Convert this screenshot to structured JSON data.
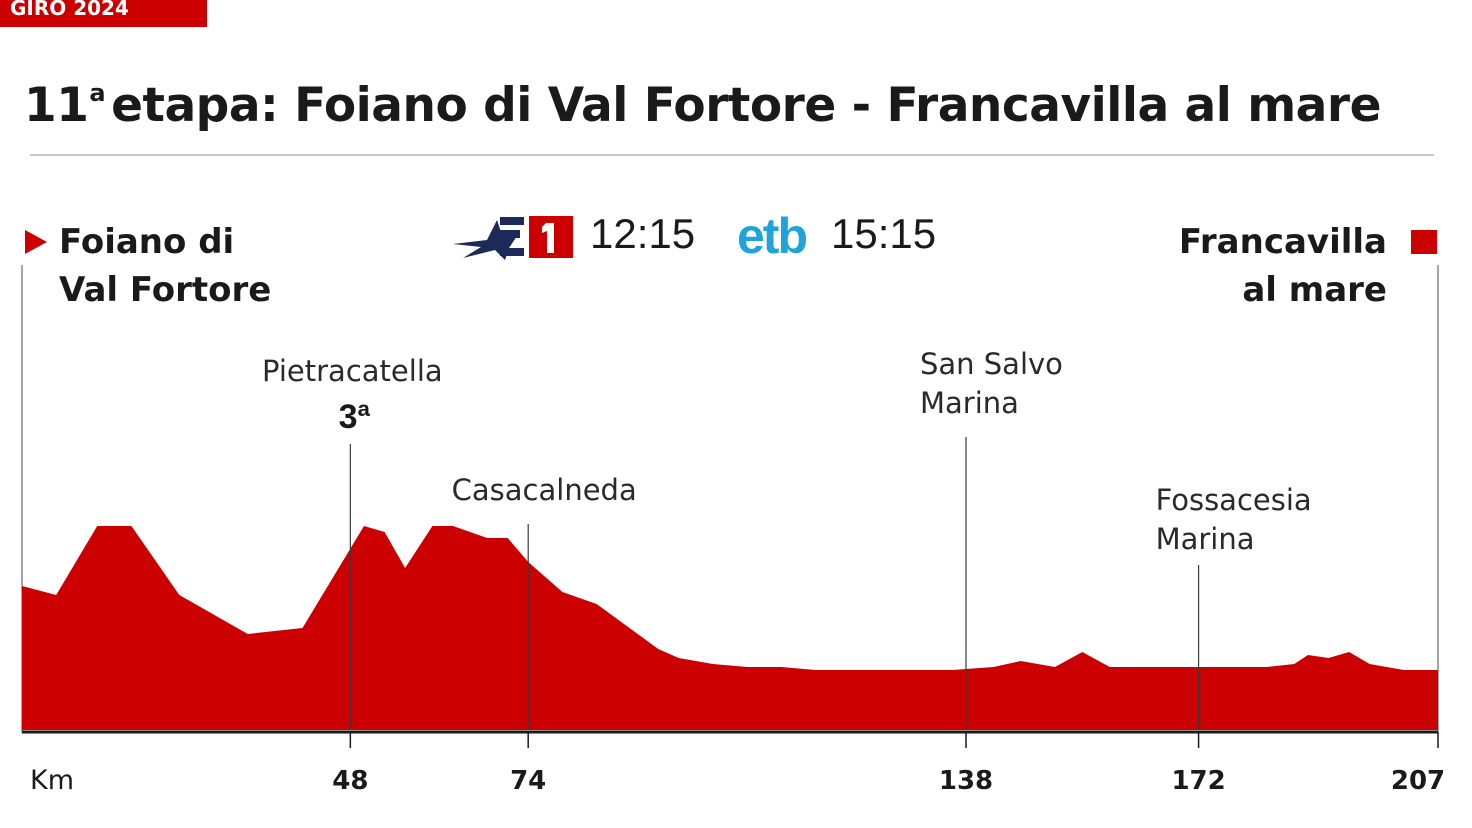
{
  "header": {
    "badge": "GIRO 2024",
    "title_number": "11",
    "title_sup": "a",
    "title_rest": "etapa: Foiano di Val Fortore - Francavilla al mare"
  },
  "start_city": [
    "Foiano di",
    "Val Fortore"
  ],
  "end_city": [
    "Francavilla",
    "al mare"
  ],
  "broadcast": {
    "tve_time": "12:15",
    "etb_logo": "etb",
    "etb_time": "15:15"
  },
  "colors": {
    "accent": "#cc0000",
    "etb": "#1fa3d9",
    "tve_navy": "#1c2a5a",
    "text": "#1a1a1a"
  },
  "chart_data": {
    "type": "area",
    "xlabel": "Km",
    "xlim": [
      0,
      207
    ],
    "x_ticks": [
      48,
      74,
      138,
      172,
      207
    ],
    "profile_km": [
      0,
      5,
      11,
      16,
      23,
      33,
      41,
      50,
      53,
      56,
      60,
      63,
      68,
      71,
      74,
      77,
      79,
      84,
      90,
      93,
      96,
      101,
      106,
      111,
      116,
      118,
      123,
      128,
      131,
      136,
      142,
      146,
      151,
      155,
      159,
      168,
      174,
      178,
      182,
      186,
      188,
      191,
      194,
      197,
      202,
      207
    ],
    "profile_alt": [
      48,
      45,
      68,
      68,
      45,
      32,
      34,
      68,
      66,
      54,
      68,
      68,
      64,
      64,
      56,
      50,
      46,
      42,
      32,
      27,
      24,
      22,
      21,
      21,
      20,
      20,
      20,
      20,
      20,
      20,
      21,
      23,
      21,
      26,
      21,
      21,
      21,
      21,
      21,
      22,
      25,
      24,
      26,
      22,
      20,
      20
    ],
    "ylim": [
      0,
      100
    ],
    "landmarks": [
      {
        "km": 48,
        "name": "Pietracatella",
        "category": "3ª"
      },
      {
        "km": 74,
        "name": "Casacalneda"
      },
      {
        "km": 138,
        "name": "San Salvo Marina"
      },
      {
        "km": 172,
        "name": "Fossacesia Marina"
      }
    ]
  }
}
